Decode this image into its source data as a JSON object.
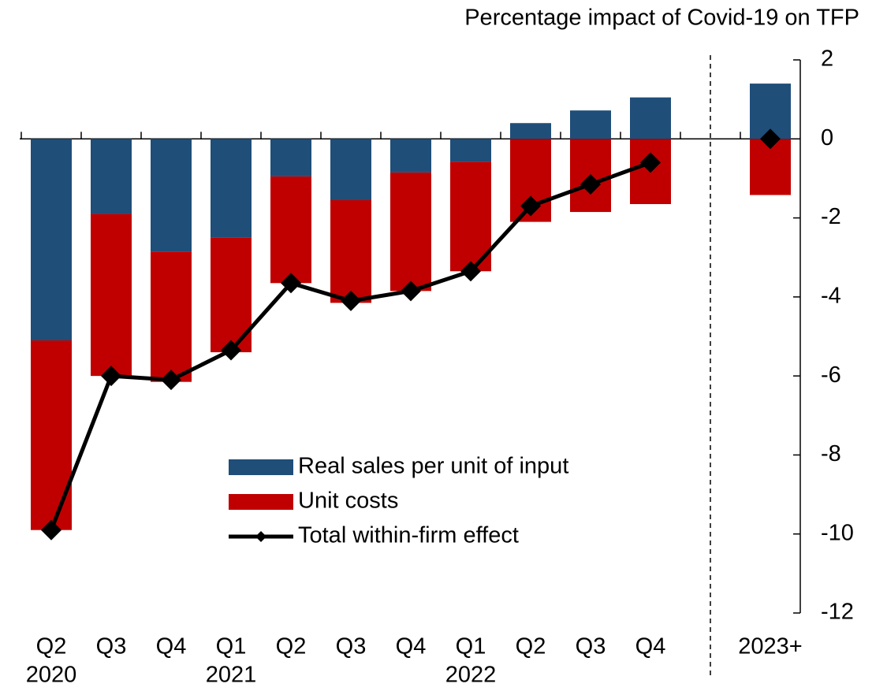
{
  "chart_data": {
    "type": "bar",
    "stacked": true,
    "title": "Percentage impact of Covid-19 on TFP",
    "categories": [
      "Q2",
      "Q3",
      "Q4",
      "Q1",
      "Q2",
      "Q3",
      "Q4",
      "Q1",
      "Q2",
      "Q3",
      "Q4",
      null,
      "2023+"
    ],
    "year_labels": [
      "2020",
      null,
      null,
      "2021",
      null,
      null,
      null,
      "2022",
      null,
      null,
      null,
      null,
      null
    ],
    "series": [
      {
        "name": "Real sales per unit of input",
        "color": "#1f4e79",
        "values": [
          -5.1,
          -1.9,
          -2.85,
          -2.5,
          -0.95,
          -1.55,
          -0.85,
          -0.58,
          0.4,
          0.72,
          1.05,
          null,
          1.4
        ]
      },
      {
        "name": "Unit costs",
        "color": "#c00000",
        "values": [
          -4.8,
          -4.1,
          -3.3,
          -2.9,
          -2.7,
          -2.6,
          -3.0,
          -2.77,
          -2.1,
          -1.85,
          -1.65,
          null,
          -1.42
        ]
      },
      {
        "name": "Total within-firm effect",
        "type": "line",
        "color": "#000000",
        "values": [
          -9.9,
          -6.0,
          -6.1,
          -5.35,
          -3.65,
          -4.1,
          -3.85,
          -3.35,
          -1.7,
          -1.15,
          -0.6,
          null,
          0.0
        ]
      }
    ],
    "ylim": [
      -12,
      2
    ],
    "yticks": [
      -12,
      -10,
      -8,
      -6,
      -4,
      -2,
      0,
      2
    ],
    "y_axis_side": "right"
  }
}
